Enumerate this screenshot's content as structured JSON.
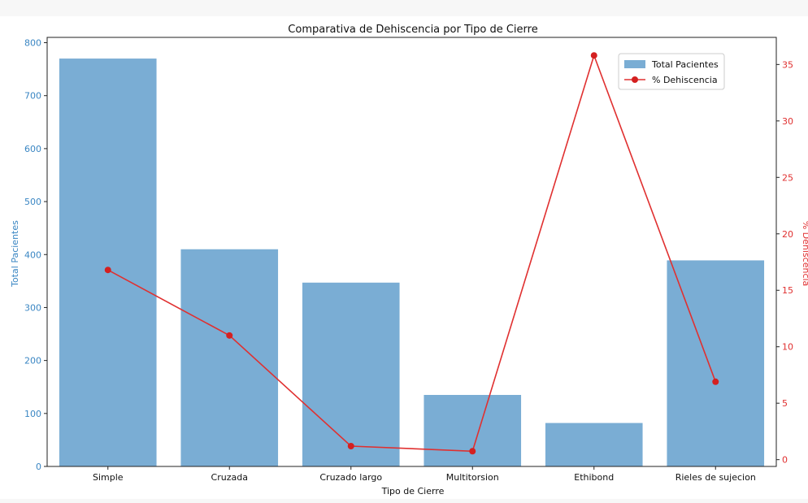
{
  "chart_data": {
    "type": "bar",
    "title": "Comparativa de Dehiscencia por Tipo de Cierre",
    "xlabel": "Tipo de Cierre",
    "ylabel": "Total Pacientes",
    "y2label": "% Dehiscencia",
    "categories": [
      "Simple",
      "Cruzada",
      "Cruzado largo",
      "Multitorsion",
      "Ethibond",
      "Rieles de sujecion"
    ],
    "series": [
      {
        "name": "Total Pacientes",
        "type": "bar",
        "axis": "left",
        "color": "#7aadd4",
        "values": [
          770,
          410,
          347,
          135,
          82,
          389
        ]
      },
      {
        "name": "% Dehiscencia",
        "type": "line",
        "axis": "right",
        "color": "#e03030",
        "values": [
          16.8,
          11.0,
          1.2,
          0.75,
          35.8,
          6.9
        ]
      }
    ],
    "ylim": [
      0,
      810
    ],
    "yticks": [
      0,
      100,
      200,
      300,
      400,
      500,
      600,
      700,
      800
    ],
    "y2lim": [
      -0.6,
      37.4
    ],
    "y2ticks": [
      0,
      5,
      10,
      15,
      20,
      25,
      30,
      35
    ],
    "legend": "top-right",
    "grid": false,
    "left_axis_color": "#3a86c3",
    "right_axis_color": "#e03030"
  }
}
